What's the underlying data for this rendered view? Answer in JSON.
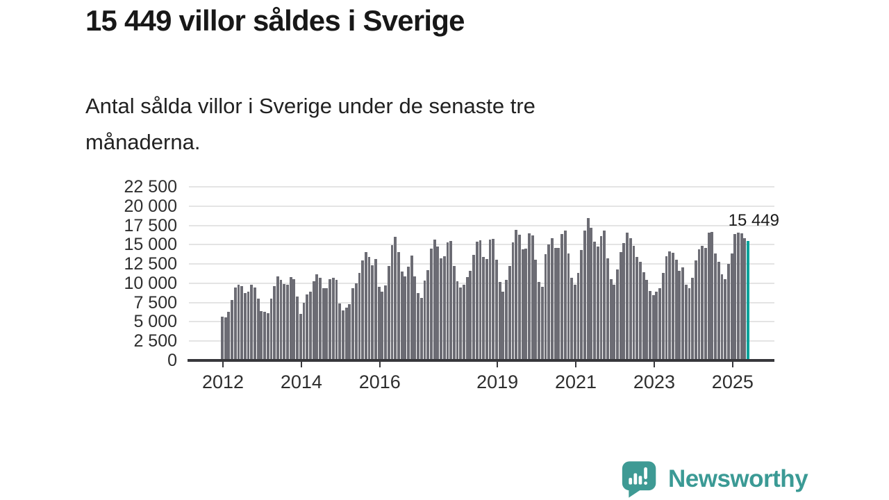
{
  "header": {
    "title": "15 449 villor såldes i Sverige",
    "subtitle": "Antal sålda villor i Sverige under de senaste tre månaderna.",
    "subtitle_lines": [
      "Antal sålda villor i Sverige under de senaste tre",
      "månaderna."
    ]
  },
  "footer": {
    "brand": "Newsworthy",
    "logo_icon": "speech-bubble-bar-chart-icon"
  },
  "colors": {
    "bar": "#6c6c74",
    "highlight": "#00a39b",
    "gridline": "#e4e4e4",
    "axis": "#37373b",
    "text": "#1a1a1a",
    "brand": "#3b9a95"
  },
  "chart_data": {
    "type": "bar",
    "title": "15 449 villor såldes i Sverige",
    "subtitle": "Antal sålda villor i Sverige under de senaste tre månaderna.",
    "x_start": "2012-01",
    "x_end": "2025-06",
    "x_freq": "monthly",
    "values": [
      5700,
      5580,
      6300,
      7860,
      9450,
      9810,
      9630,
      8730,
      8910,
      9810,
      9450,
      8010,
      6360,
      6270,
      6120,
      8010,
      9660,
      10860,
      10410,
      9870,
      9810,
      10770,
      10560,
      8310,
      6060,
      7460,
      8540,
      8900,
      10250,
      11150,
      10700,
      9350,
      9350,
      10550,
      10700,
      10400,
      7400,
      6500,
      6800,
      7250,
      9350,
      9950,
      11300,
      12950,
      14050,
      13400,
      12350,
      13100,
      9550,
      8900,
      9700,
      12260,
      14970,
      16000,
      14070,
      11500,
      10900,
      12110,
      13620,
      10860,
      8760,
      8070,
      10320,
      11670,
      14460,
      15660,
      14760,
      13260,
      13470,
      15270,
      15450,
      12210,
      10260,
      9420,
      9810,
      10800,
      11610,
      13710,
      15360,
      15570,
      13410,
      13170,
      15660,
      15750,
      13010,
      10150,
      8940,
      10450,
      12260,
      15270,
      16930,
      16330,
      14370,
      14520,
      16480,
      16180,
      13010,
      10150,
      9550,
      13770,
      15070,
      15820,
      14620,
      14620,
      16420,
      16870,
      13870,
      10720,
      9820,
      11320,
      14320,
      16870,
      18460,
      17170,
      15370,
      14770,
      16120,
      16810,
      13270,
      10570,
      9820,
      11770,
      14020,
      15220,
      16570,
      15820,
      14880,
      13390,
      12800,
      11400,
      10400,
      9000,
      8500,
      8900,
      9400,
      11300,
      13540,
      14130,
      13990,
      13090,
      11600,
      12050,
      9820,
      9370,
      10710,
      12940,
      14430,
      14880,
      14580,
      16520,
      16670,
      13840,
      12800,
      11160,
      10560,
      12500,
      13840,
      16370,
      16550,
      16450,
      15830,
      15449
    ],
    "highlight_index": 161,
    "highlight_value": 15449,
    "last_value_label": "15 449",
    "ylim": [
      0,
      22500
    ],
    "yticks": [
      0,
      2500,
      5000,
      7500,
      10000,
      12500,
      15000,
      17500,
      20000,
      22500
    ],
    "ytick_labels": [
      "0",
      "2 500",
      "5 000",
      "7 500",
      "10 000",
      "12 500",
      "15 000",
      "17 500",
      "20 000",
      "22 500"
    ],
    "xticks": [
      2012,
      2014,
      2016,
      2019,
      2021,
      2023,
      2025
    ],
    "xtick_labels": [
      "2012",
      "2014",
      "2016",
      "2019",
      "2021",
      "2023",
      "2025"
    ],
    "grid": "horizontal",
    "legend": "none"
  }
}
